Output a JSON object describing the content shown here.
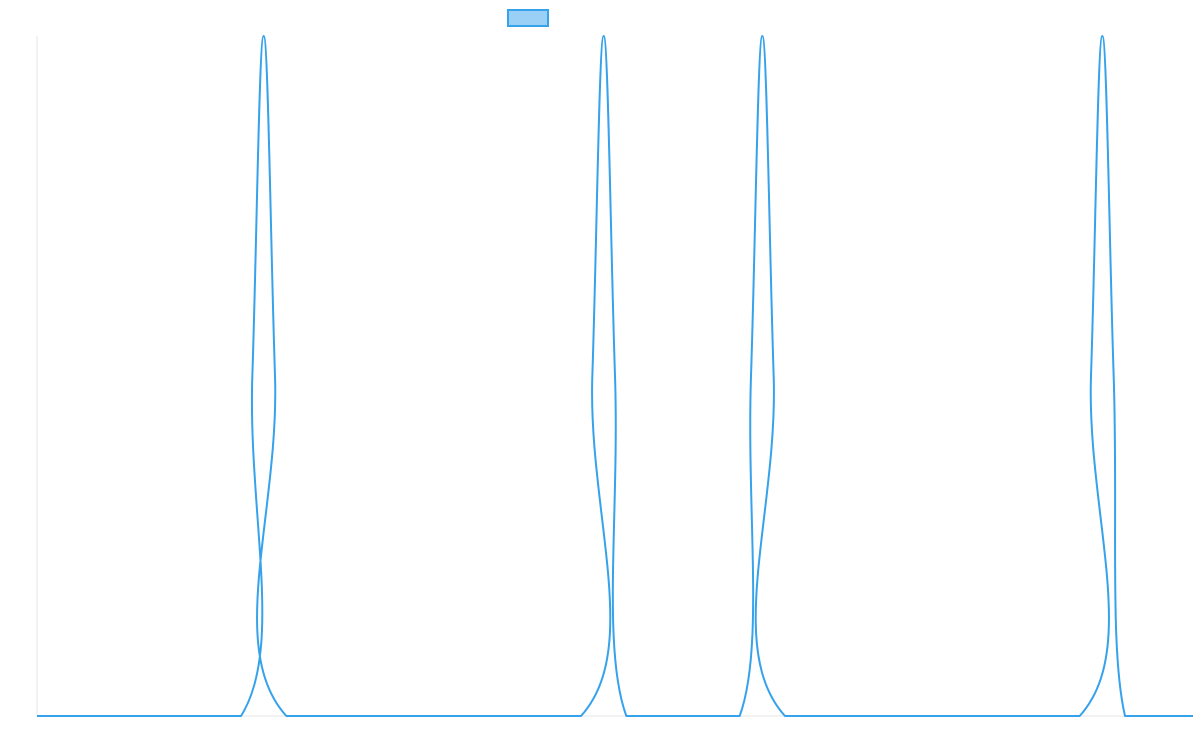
{
  "chart_data": {
    "type": "line",
    "title": "",
    "xlabel": "",
    "ylabel": "",
    "x_range": [
      0,
      1020
    ],
    "y_range": [
      0,
      1
    ],
    "grid": false,
    "legend": {
      "position": "top-center",
      "entries": [
        {
          "label": ""
        }
      ]
    },
    "series": [
      {
        "name": "",
        "color": "#36a2eb",
        "fill_color": "#9ad0f5",
        "points": [
          [
            0,
            0
          ],
          [
            180,
            0
          ],
          [
            190,
            0.5
          ],
          [
            200,
            1
          ],
          [
            210,
            0.5
          ],
          [
            220,
            0
          ],
          [
            480,
            0
          ],
          [
            490,
            0.5
          ],
          [
            500,
            1
          ],
          [
            510,
            0.5
          ],
          [
            520,
            0
          ],
          [
            620,
            0
          ],
          [
            630,
            0.5
          ],
          [
            640,
            1
          ],
          [
            650,
            0.5
          ],
          [
            660,
            0
          ],
          [
            920,
            0
          ],
          [
            930,
            0.5
          ],
          [
            940,
            1
          ],
          [
            950,
            0.5
          ],
          [
            960,
            0
          ],
          [
            1020,
            0
          ]
        ]
      }
    ]
  }
}
